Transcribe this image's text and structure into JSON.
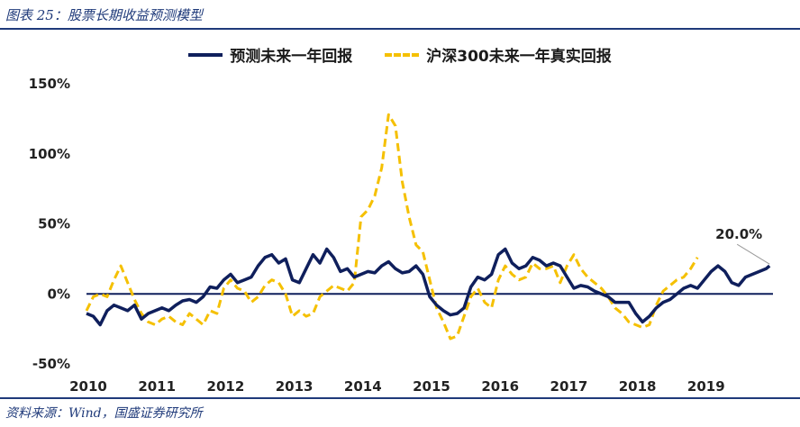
{
  "figure": {
    "title": "图表 25：股票长期收益预测模型",
    "source": "资料来源：Wind，国盛证券研究所"
  },
  "legend": {
    "series_pred": "预测未来一年回报",
    "series_real": "沪深300未来一年真实回报"
  },
  "colors": {
    "pred": "#0f1f5c",
    "real": "#f5c000",
    "axis": "#0f1f5c",
    "rule": "#1f3a7a"
  },
  "chart_data": {
    "type": "line",
    "title": "股票长期收益预测模型",
    "xlabel": "",
    "ylabel": "",
    "xlim": [
      2010.0,
      2020.0
    ],
    "ylim": [
      -50,
      150
    ],
    "yticks": [
      -50,
      0,
      50,
      100,
      150
    ],
    "ytick_labels": [
      "-50%",
      "0%",
      "50%",
      "100%",
      "150%"
    ],
    "xticks": [
      2010,
      2011,
      2012,
      2013,
      2014,
      2015,
      2016,
      2017,
      2018,
      2019
    ],
    "xtick_labels": [
      "2010",
      "2011",
      "2012",
      "2013",
      "2014",
      "2015",
      "2016",
      "2017",
      "2018",
      "2019"
    ],
    "annotation": {
      "label": "20.0%",
      "x": 2019.95,
      "y": 20
    },
    "series": [
      {
        "name": "预测未来一年回报",
        "style": "solid",
        "x": [
          2010.0,
          2010.1,
          2010.2,
          2010.3,
          2010.4,
          2010.5,
          2010.6,
          2010.7,
          2010.8,
          2010.9,
          2011.0,
          2011.1,
          2011.2,
          2011.3,
          2011.4,
          2011.5,
          2011.6,
          2011.7,
          2011.8,
          2011.9,
          2012.0,
          2012.1,
          2012.2,
          2012.3,
          2012.4,
          2012.5,
          2012.6,
          2012.7,
          2012.8,
          2012.9,
          2013.0,
          2013.1,
          2013.2,
          2013.3,
          2013.4,
          2013.5,
          2013.6,
          2013.7,
          2013.8,
          2013.9,
          2014.0,
          2014.1,
          2014.2,
          2014.3,
          2014.4,
          2014.5,
          2014.6,
          2014.7,
          2014.8,
          2014.9,
          2015.0,
          2015.1,
          2015.2,
          2015.3,
          2015.4,
          2015.5,
          2015.6,
          2015.7,
          2015.8,
          2015.9,
          2016.0,
          2016.1,
          2016.2,
          2016.3,
          2016.4,
          2016.5,
          2016.6,
          2016.7,
          2016.8,
          2016.9,
          2017.0,
          2017.1,
          2017.2,
          2017.3,
          2017.4,
          2017.5,
          2017.6,
          2017.7,
          2017.8,
          2017.9,
          2018.0,
          2018.1,
          2018.2,
          2018.3,
          2018.4,
          2018.5,
          2018.6,
          2018.7,
          2018.8,
          2018.9,
          2019.0,
          2019.1,
          2019.2,
          2019.3,
          2019.4,
          2019.5,
          2019.6,
          2019.7,
          2019.8,
          2019.9,
          2019.95
        ],
        "values": [
          -14,
          -16,
          -22,
          -12,
          -8,
          -10,
          -12,
          -8,
          -18,
          -14,
          -12,
          -10,
          -12,
          -8,
          -5,
          -4,
          -6,
          -2,
          5,
          4,
          10,
          14,
          8,
          10,
          12,
          20,
          26,
          28,
          22,
          25,
          10,
          8,
          18,
          28,
          22,
          32,
          26,
          16,
          18,
          12,
          14,
          16,
          15,
          20,
          23,
          18,
          15,
          16,
          20,
          14,
          -2,
          -8,
          -12,
          -15,
          -14,
          -10,
          5,
          12,
          10,
          14,
          28,
          32,
          22,
          18,
          20,
          26,
          24,
          20,
          22,
          20,
          12,
          4,
          6,
          5,
          2,
          0,
          -2,
          -6,
          -6,
          -6,
          -14,
          -20,
          -16,
          -10,
          -6,
          -4,
          0,
          4,
          6,
          4,
          10,
          16,
          20,
          16,
          8,
          6,
          12,
          14,
          16,
          18,
          20
        ]
      },
      {
        "name": "沪深300未来一年真实回报",
        "style": "dashed",
        "x": [
          2010.0,
          2010.1,
          2010.2,
          2010.3,
          2010.4,
          2010.5,
          2010.6,
          2010.7,
          2010.8,
          2010.9,
          2011.0,
          2011.1,
          2011.2,
          2011.3,
          2011.4,
          2011.5,
          2011.6,
          2011.7,
          2011.8,
          2011.9,
          2012.0,
          2012.1,
          2012.2,
          2012.3,
          2012.4,
          2012.5,
          2012.6,
          2012.7,
          2012.8,
          2012.9,
          2013.0,
          2013.1,
          2013.2,
          2013.3,
          2013.4,
          2013.5,
          2013.6,
          2013.7,
          2013.8,
          2013.9,
          2014.0,
          2014.1,
          2014.2,
          2014.3,
          2014.4,
          2014.5,
          2014.6,
          2014.7,
          2014.8,
          2014.9,
          2015.0,
          2015.1,
          2015.2,
          2015.3,
          2015.4,
          2015.5,
          2015.6,
          2015.7,
          2015.8,
          2015.9,
          2016.0,
          2016.1,
          2016.2,
          2016.3,
          2016.4,
          2016.5,
          2016.6,
          2016.7,
          2016.8,
          2016.9,
          2017.0,
          2017.1,
          2017.2,
          2017.3,
          2017.4,
          2017.5,
          2017.6,
          2017.7,
          2017.8,
          2017.9,
          2018.0,
          2018.1,
          2018.2,
          2018.3,
          2018.4,
          2018.5,
          2018.6,
          2018.7,
          2018.8,
          2018.9
        ],
        "values": [
          -12,
          -2,
          0,
          -2,
          10,
          20,
          8,
          -4,
          -14,
          -20,
          -22,
          -18,
          -16,
          -20,
          -22,
          -14,
          -18,
          -22,
          -12,
          -14,
          4,
          10,
          4,
          2,
          -6,
          -2,
          6,
          10,
          8,
          0,
          -16,
          -12,
          -16,
          -14,
          -2,
          2,
          6,
          4,
          2,
          8,
          55,
          60,
          70,
          90,
          128,
          120,
          80,
          55,
          35,
          30,
          10,
          -10,
          -20,
          -32,
          -30,
          -16,
          -2,
          4,
          -6,
          -10,
          10,
          20,
          14,
          10,
          12,
          22,
          18,
          18,
          20,
          8,
          20,
          28,
          18,
          12,
          8,
          4,
          -2,
          -10,
          -14,
          -20,
          -22,
          -24,
          -22,
          -8,
          2,
          6,
          10,
          12,
          18,
          26
        ]
      }
    ]
  }
}
